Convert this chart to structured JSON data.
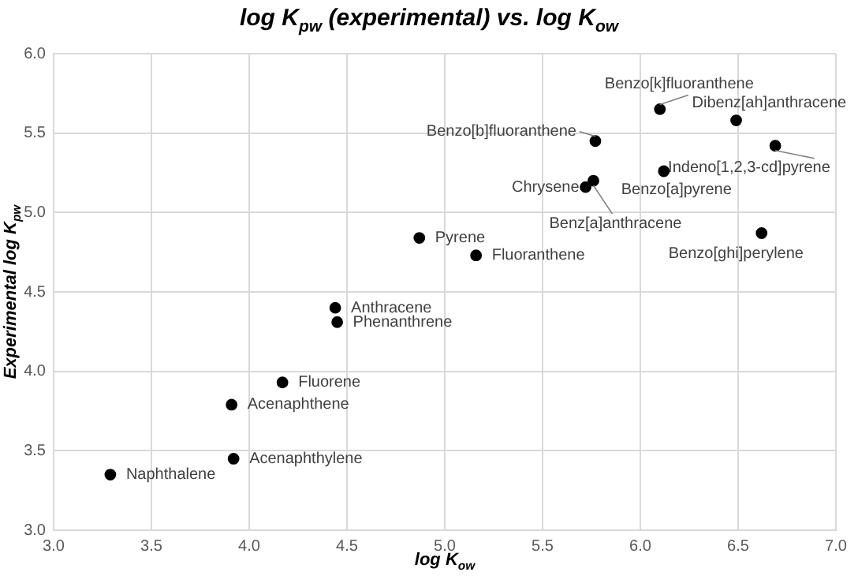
{
  "chart_data": {
    "type": "scatter",
    "title": "log K$_{pw}$ (experimental) vs. log K$_{ow}$",
    "xlabel": "log K$_{ow}$",
    "ylabel": "Experimental log K$_{pw}$",
    "x": [
      3.29,
      3.92,
      3.91,
      4.17,
      4.44,
      4.45,
      4.87,
      5.16,
      5.72,
      5.76,
      5.77,
      6.1,
      6.12,
      6.49,
      6.69,
      6.62
    ],
    "series": [
      {
        "color": "#000000",
        "values": [
          3.35,
          3.45,
          3.79,
          3.93,
          4.4,
          4.31,
          4.84,
          4.73,
          5.16,
          5.2,
          5.45,
          5.65,
          5.26,
          5.58,
          5.42,
          4.87
        ]
      }
    ],
    "annotations": [
      {
        "text": "Naphthalene",
        "x": 3.29,
        "y": 3.35
      },
      {
        "text": "Acenaphthylene",
        "x": 3.92,
        "y": 3.45
      },
      {
        "text": "Acenaphthene",
        "x": 3.91,
        "y": 3.79
      },
      {
        "text": "Fluorene",
        "x": 4.17,
        "y": 3.93
      },
      {
        "text": "Anthracene",
        "x": 4.44,
        "y": 4.4
      },
      {
        "text": "Phenanthrene",
        "x": 4.45,
        "y": 4.31
      },
      {
        "text": "Pyrene",
        "x": 4.87,
        "y": 4.84
      },
      {
        "text": "Fluoranthene",
        "x": 5.16,
        "y": 4.73
      },
      {
        "text": "Chrysene",
        "x": 5.72,
        "y": 5.16
      },
      {
        "text": "Benz[a]anthracene",
        "x": 5.76,
        "y": 5.2
      },
      {
        "text": "Benzo[b]fluoranthene",
        "x": 5.77,
        "y": 5.45
      },
      {
        "text": "Benzo[k]fluoranthene",
        "x": 6.1,
        "y": 5.65
      },
      {
        "text": "Benzo[a]pyrene",
        "x": 6.12,
        "y": 5.26
      },
      {
        "text": "Dibenz[ah]anthracene",
        "x": 6.49,
        "y": 5.58
      },
      {
        "text": "Indeno[1,2,3-cd]pyrene",
        "x": 6.69,
        "y": 5.42
      },
      {
        "text": "Benzo[ghi]perylene",
        "x": 6.62,
        "y": 4.87
      }
    ],
    "xlim": [
      3,
      7
    ],
    "xticks": [
      {
        "value": 3,
        "label": "3.0"
      },
      {
        "value": 3.5,
        "label": "3.5"
      },
      {
        "value": 4,
        "label": "4.0"
      },
      {
        "value": 4.5,
        "label": "4.5"
      },
      {
        "value": 5,
        "label": "5.0"
      },
      {
        "value": 5.5,
        "label": "5.5"
      },
      {
        "value": 6,
        "label": "6.0"
      },
      {
        "value": 6.5,
        "label": "6.5"
      },
      {
        "value": 7,
        "label": "7.0"
      }
    ],
    "ylim": [
      3,
      6
    ],
    "yticks": [
      {
        "value": 3,
        "label": "3.0"
      },
      {
        "value": 3.5,
        "label": "3.5"
      },
      {
        "value": 4,
        "label": "4.0"
      },
      {
        "value": 4.5,
        "label": "4.5"
      },
      {
        "value": 5,
        "label": "5.0"
      },
      {
        "value": 5.5,
        "label": "5.5"
      },
      {
        "value": 6,
        "label": "6.0"
      }
    ],
    "grid": true,
    "marker": "circle",
    "legend": false
  }
}
